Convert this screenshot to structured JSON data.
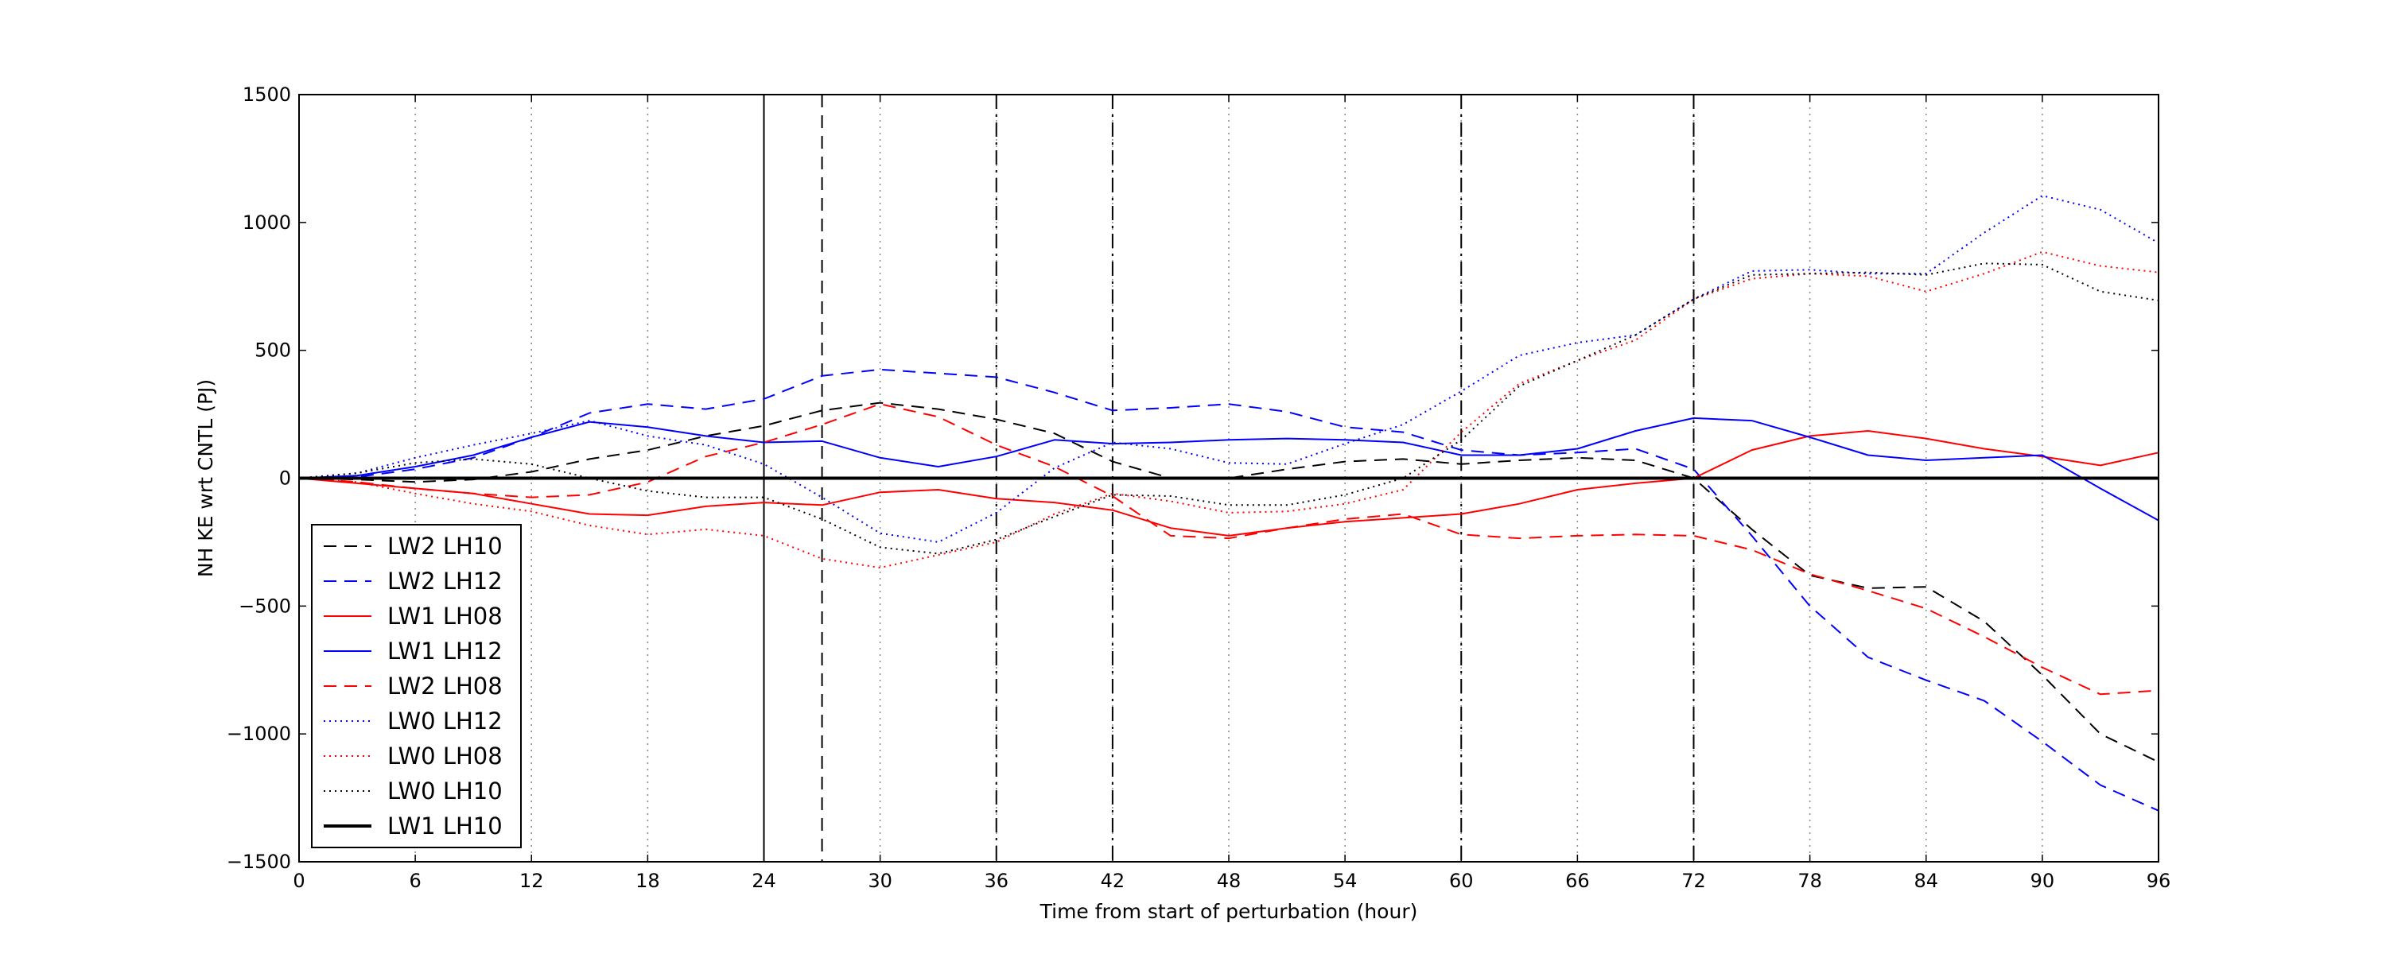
{
  "chart_data": {
    "type": "line",
    "title": "",
    "xlabel": "Time from start of perturbation (hour)",
    "ylabel": "NH KE wrt CNTL (PJ)",
    "xlim": [
      0,
      96
    ],
    "ylim": [
      -1500,
      1500
    ],
    "xticks": [
      0,
      6,
      12,
      18,
      24,
      30,
      36,
      42,
      48,
      54,
      60,
      66,
      72,
      78,
      84,
      90,
      96
    ],
    "yticks": [
      -1500,
      -1000,
      -500,
      0,
      500,
      1000,
      1500
    ],
    "xtick_labels": [
      "0",
      "6",
      "12",
      "18",
      "24",
      "30",
      "36",
      "42",
      "48",
      "54",
      "60",
      "66",
      "72",
      "78",
      "84",
      "90",
      "96"
    ],
    "ytick_labels": [
      "−1500",
      "−1000",
      "−500",
      "0",
      "500",
      "1000",
      "1500"
    ],
    "grid": "vertical dotted at x ticks",
    "vertical_lines": [
      {
        "x": 24,
        "style": "solid"
      },
      {
        "x": 27,
        "style": "dashed"
      },
      {
        "x": 36,
        "style": "dashdot"
      },
      {
        "x": 42,
        "style": "dashdot"
      },
      {
        "x": 60,
        "style": "dashdot"
      },
      {
        "x": 72,
        "style": "dashdot"
      }
    ],
    "legend_position": "lower-left",
    "x": [
      0,
      3,
      6,
      9,
      12,
      15,
      18,
      21,
      24,
      27,
      30,
      33,
      36,
      39,
      42,
      45,
      48,
      51,
      54,
      57,
      60,
      63,
      66,
      69,
      72,
      75,
      78,
      81,
      84,
      87,
      90,
      93,
      96
    ],
    "series": [
      {
        "name": "LW2 LH10",
        "color": "#000000",
        "style": "dashed",
        "width": 2,
        "values": [
          0,
          -5,
          -15,
          -5,
          25,
          75,
          110,
          165,
          205,
          265,
          295,
          270,
          230,
          175,
          65,
          0,
          0,
          35,
          65,
          75,
          55,
          70,
          80,
          70,
          0,
          -200,
          -380,
          -430,
          -425,
          -560,
          -770,
          -1000,
          -1110
        ]
      },
      {
        "name": "LW2 LH12",
        "color": "#0000ff",
        "style": "dashed",
        "width": 2,
        "values": [
          0,
          5,
          35,
          80,
          160,
          255,
          290,
          270,
          310,
          400,
          425,
          410,
          395,
          335,
          265,
          275,
          290,
          260,
          200,
          180,
          110,
          90,
          100,
          115,
          35,
          -225,
          -500,
          -700,
          -790,
          -870,
          -1030,
          -1200,
          -1300
        ]
      },
      {
        "name": "LW1 LH08",
        "color": "#ff0000",
        "style": "solid",
        "width": 2,
        "values": [
          0,
          -20,
          -40,
          -60,
          -100,
          -140,
          -145,
          -110,
          -95,
          -105,
          -55,
          -45,
          -80,
          -95,
          -125,
          -195,
          -225,
          -195,
          -170,
          -155,
          -140,
          -100,
          -45,
          -20,
          0,
          110,
          165,
          185,
          155,
          115,
          85,
          50,
          100
        ]
      },
      {
        "name": "LW1 LH12",
        "color": "#0000ff",
        "style": "solid",
        "width": 2,
        "values": [
          0,
          10,
          45,
          90,
          160,
          220,
          200,
          165,
          140,
          145,
          80,
          45,
          85,
          150,
          135,
          140,
          150,
          155,
          150,
          140,
          90,
          90,
          115,
          185,
          235,
          225,
          160,
          90,
          70,
          80,
          90,
          -40,
          -165
        ]
      },
      {
        "name": "LW2 LH08",
        "color": "#ff0000",
        "style": "dashed",
        "width": 2,
        "values": [
          0,
          -15,
          -40,
          -60,
          -75,
          -65,
          -15,
          85,
          140,
          210,
          290,
          240,
          130,
          45,
          -70,
          -225,
          -235,
          -195,
          -160,
          -140,
          -220,
          -235,
          -225,
          -220,
          -225,
          -280,
          -375,
          -440,
          -510,
          -620,
          -740,
          -845,
          -830
        ]
      },
      {
        "name": "LW0 LH12",
        "color": "#0000ff",
        "style": "dotted",
        "width": 2,
        "values": [
          0,
          20,
          80,
          130,
          175,
          225,
          165,
          130,
          55,
          -75,
          -215,
          -250,
          -135,
          40,
          140,
          115,
          60,
          55,
          135,
          210,
          340,
          480,
          530,
          560,
          700,
          810,
          815,
          800,
          800,
          960,
          1105,
          1050,
          920
        ]
      },
      {
        "name": "LW0 LH08",
        "color": "#ff0000",
        "style": "dotted",
        "width": 2,
        "values": [
          0,
          -15,
          -60,
          -100,
          -130,
          -185,
          -220,
          -200,
          -225,
          -315,
          -350,
          -300,
          -250,
          -140,
          -60,
          -90,
          -135,
          -130,
          -100,
          -45,
          180,
          370,
          460,
          540,
          700,
          780,
          800,
          790,
          730,
          800,
          885,
          830,
          805
        ]
      },
      {
        "name": "LW0 LH10",
        "color": "#000000",
        "style": "dotted",
        "width": 2,
        "values": [
          0,
          20,
          60,
          75,
          55,
          0,
          -50,
          -75,
          -75,
          -160,
          -270,
          -295,
          -240,
          -150,
          -65,
          -70,
          -105,
          -105,
          -65,
          0,
          150,
          360,
          460,
          560,
          700,
          795,
          800,
          805,
          795,
          840,
          835,
          730,
          695
        ]
      },
      {
        "name": "LW1 LH10",
        "color": "#000000",
        "style": "solid",
        "width": 4,
        "values": [
          0,
          0,
          0,
          0,
          0,
          0,
          0,
          0,
          0,
          0,
          0,
          0,
          0,
          0,
          0,
          0,
          0,
          0,
          0,
          0,
          0,
          0,
          0,
          0,
          0,
          0,
          0,
          0,
          0,
          0,
          0,
          0,
          0
        ]
      }
    ]
  }
}
